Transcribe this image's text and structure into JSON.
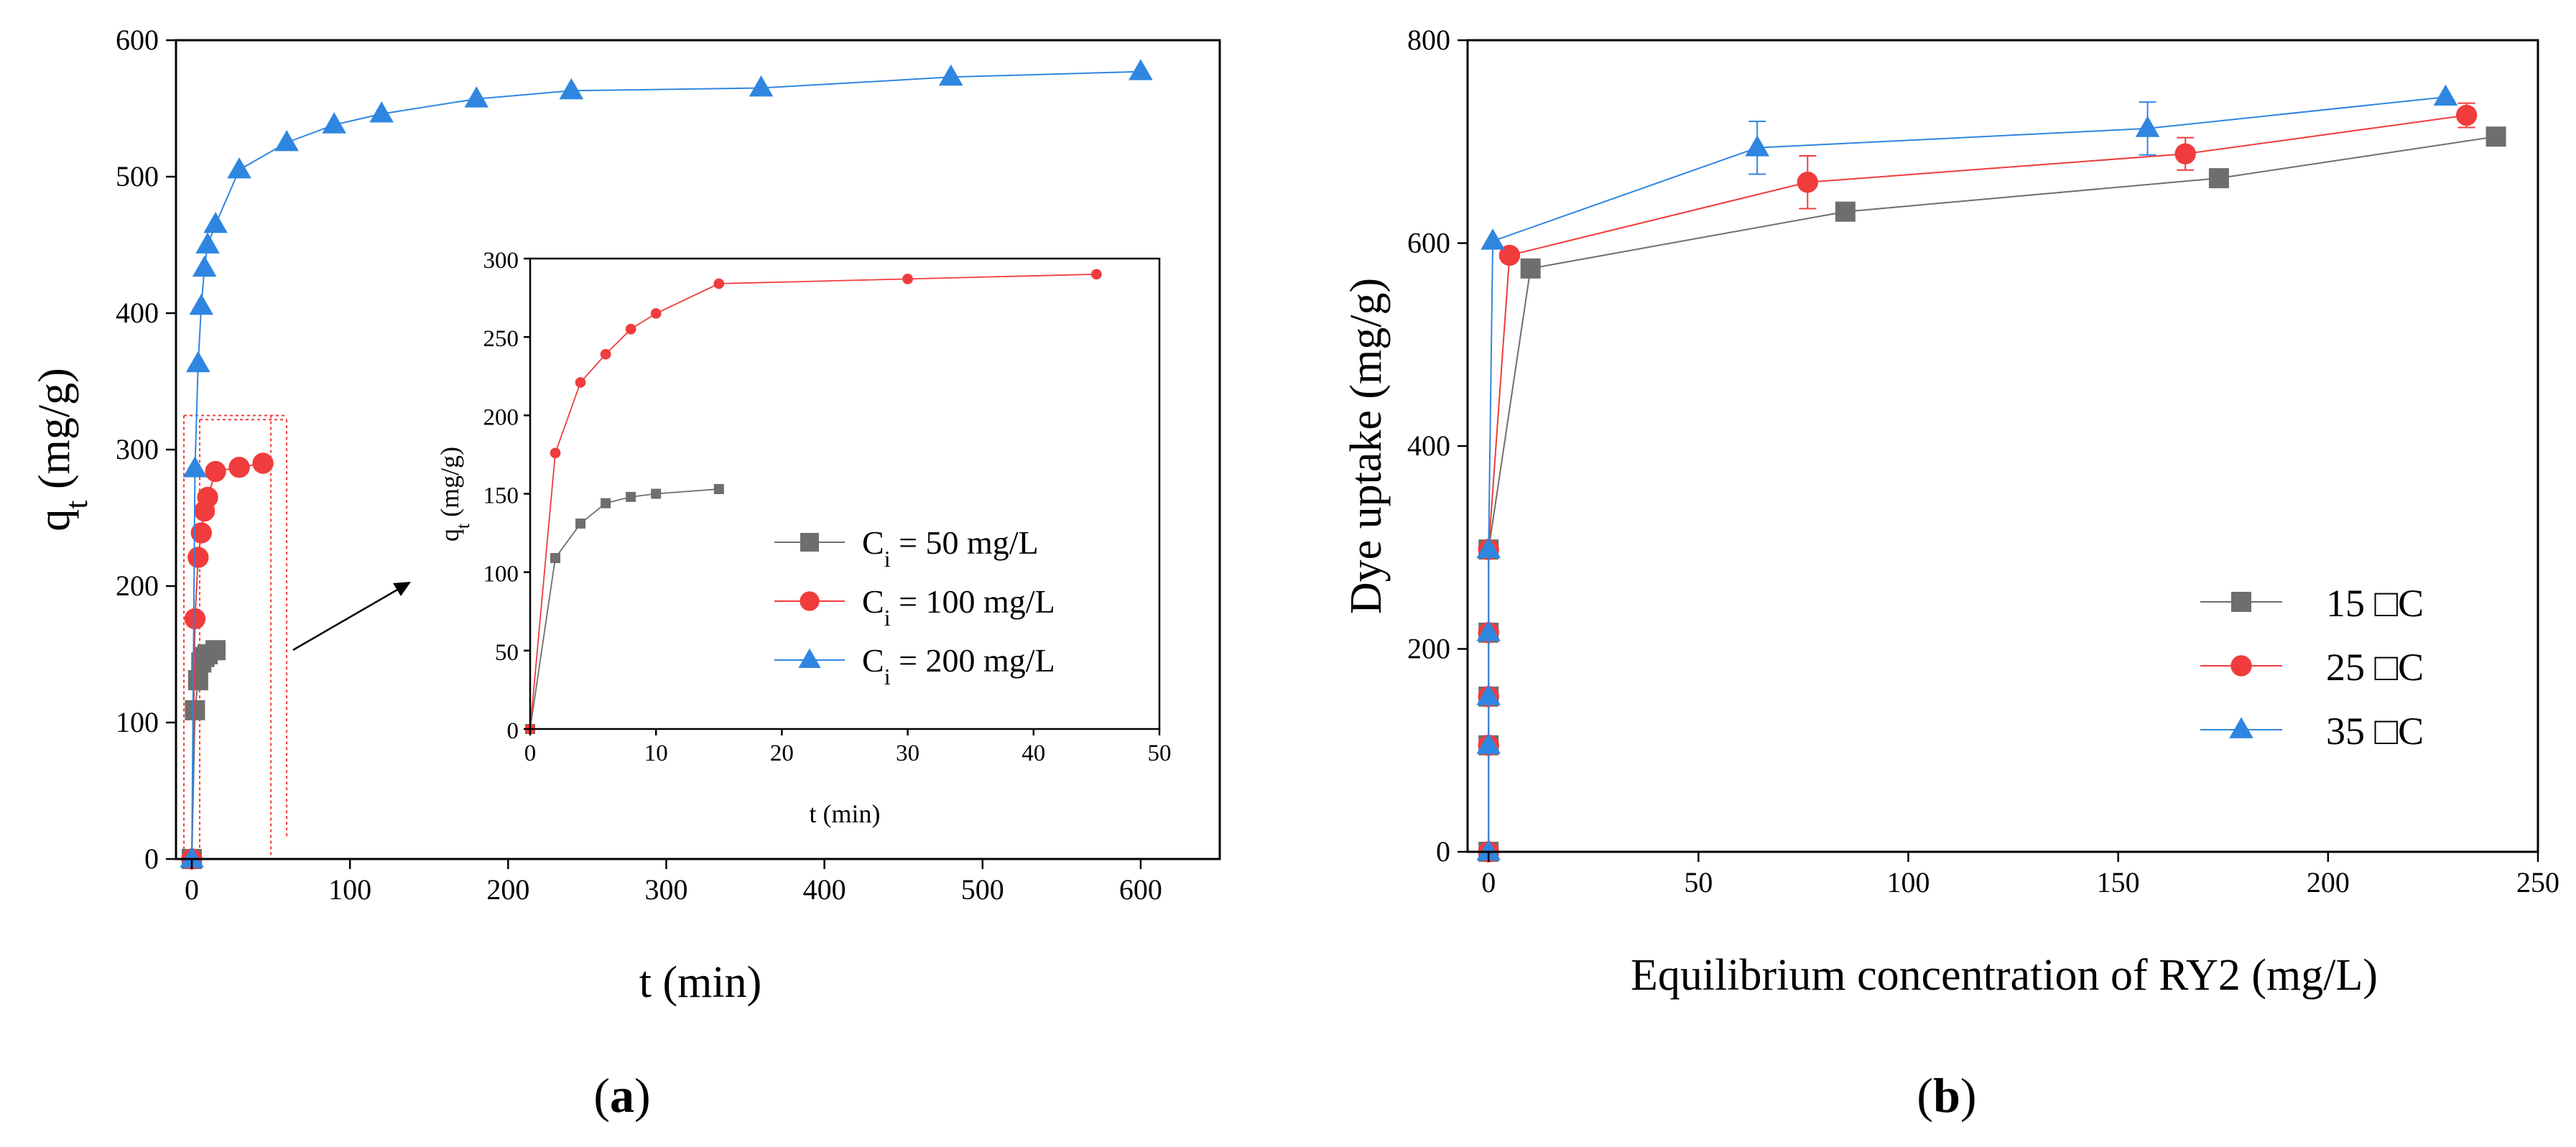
{
  "figure": {
    "label_a": "a",
    "label_b": "b"
  },
  "chart_data": [
    {
      "id": "main",
      "panel": "a",
      "type": "line",
      "xlabel": "t (min)",
      "ylabel": "q",
      "ylabel_sub": "t",
      "ylabel_unit": " (mg/g)",
      "xlim": [
        -10,
        650
      ],
      "ylim": [
        0,
        600
      ],
      "xticks": [
        0,
        100,
        200,
        300,
        400,
        500,
        600
      ],
      "yticks": [
        0,
        100,
        200,
        300,
        400,
        500,
        600
      ],
      "series": [
        {
          "name": "Ci = 50 mg/L",
          "marker": "square",
          "color": "#6e6e6e",
          "x": [
            0,
            2,
            4,
            6,
            8,
            10,
            15
          ],
          "y": [
            0,
            109,
            131,
            144,
            148,
            150,
            153
          ]
        },
        {
          "name": "Ci = 100 mg/L",
          "marker": "circle",
          "color": "#f03c3c",
          "x": [
            0,
            2,
            4,
            6,
            8,
            10,
            15,
            30,
            45
          ],
          "y": [
            0,
            176,
            221,
            239,
            255,
            265,
            284,
            287,
            290
          ]
        },
        {
          "name": "Ci = 200 mg/L",
          "marker": "triangle",
          "color": "#2f86e0",
          "x": [
            0,
            2,
            4,
            6,
            8,
            10,
            15,
            30,
            60,
            90,
            120,
            180,
            240,
            360,
            480,
            600
          ],
          "y": [
            0,
            286,
            363,
            405,
            433,
            450,
            465,
            505,
            525,
            538,
            546,
            557,
            563,
            565,
            573,
            577
          ]
        }
      ]
    },
    {
      "id": "inset",
      "panel": "a",
      "type": "line",
      "xlabel": "t (min)",
      "ylabel": "q",
      "ylabel_sub": "t",
      "ylabel_unit": " (mg/g)",
      "xlim": [
        0,
        50
      ],
      "ylim": [
        0,
        300
      ],
      "xticks": [
        0,
        10,
        20,
        30,
        40,
        50
      ],
      "yticks": [
        0,
        50,
        100,
        150,
        200,
        250,
        300
      ],
      "series": [
        {
          "name": "Ci = 50 mg/L",
          "marker": "square",
          "color": "#6e6e6e",
          "x": [
            0,
            2,
            4,
            6,
            8,
            10,
            15
          ],
          "y": [
            0,
            109,
            131,
            144,
            148,
            150,
            153
          ]
        },
        {
          "name": "Ci = 100 mg/L",
          "marker": "circle",
          "color": "#f03c3c",
          "x": [
            0,
            2,
            4,
            6,
            8,
            10,
            15,
            30,
            45
          ],
          "y": [
            0,
            176,
            221,
            239,
            255,
            265,
            284,
            287,
            290
          ]
        }
      ],
      "legend": [
        {
          "prefix": "C",
          "sub": "i",
          "rest": " = 50 mg/L",
          "marker": "square",
          "color": "#6e6e6e"
        },
        {
          "prefix": "C",
          "sub": "i",
          "rest": " = 100 mg/L",
          "marker": "circle",
          "color": "#f03c3c"
        },
        {
          "prefix": "C",
          "sub": "i",
          "rest": " = 200 mg/L",
          "marker": "triangle",
          "color": "#2f86e0"
        }
      ]
    },
    {
      "id": "isotherm",
      "panel": "b",
      "type": "line",
      "xlabel": "Equilibrium concentration of RY2 (mg/L)",
      "ylabel": "Dye uptake (mg/g)",
      "xlim": [
        -5,
        250
      ],
      "ylim": [
        0,
        800
      ],
      "xticks": [
        0,
        50,
        100,
        150,
        200,
        250
      ],
      "yticks": [
        0,
        200,
        400,
        600,
        800
      ],
      "series": [
        {
          "name": "15 □C",
          "marker": "square",
          "color": "#6e6e6e",
          "x": [
            0,
            0,
            0,
            0,
            0,
            10,
            85,
            174,
            240
          ],
          "y": [
            0,
            105,
            153,
            216,
            298,
            575,
            631,
            664,
            705
          ],
          "err": [
            0,
            0,
            0,
            0,
            0,
            0,
            8,
            0,
            0
          ]
        },
        {
          "name": "25 □C",
          "marker": "circle",
          "color": "#f03c3c",
          "x": [
            0,
            0,
            0,
            0,
            0,
            5,
            76,
            166,
            233
          ],
          "y": [
            0,
            105,
            153,
            216,
            298,
            588,
            660,
            688,
            726
          ],
          "err": [
            0,
            0,
            0,
            0,
            0,
            0,
            26,
            16,
            12
          ]
        },
        {
          "name": "35 □C",
          "marker": "triangle",
          "color": "#2f86e0",
          "x": [
            0,
            0,
            0,
            0,
            0,
            1,
            64,
            157,
            228
          ],
          "y": [
            0,
            105,
            153,
            216,
            298,
            602,
            694,
            713,
            744
          ],
          "err": [
            0,
            0,
            0,
            0,
            0,
            0,
            26,
            26,
            0
          ]
        }
      ]
    }
  ]
}
